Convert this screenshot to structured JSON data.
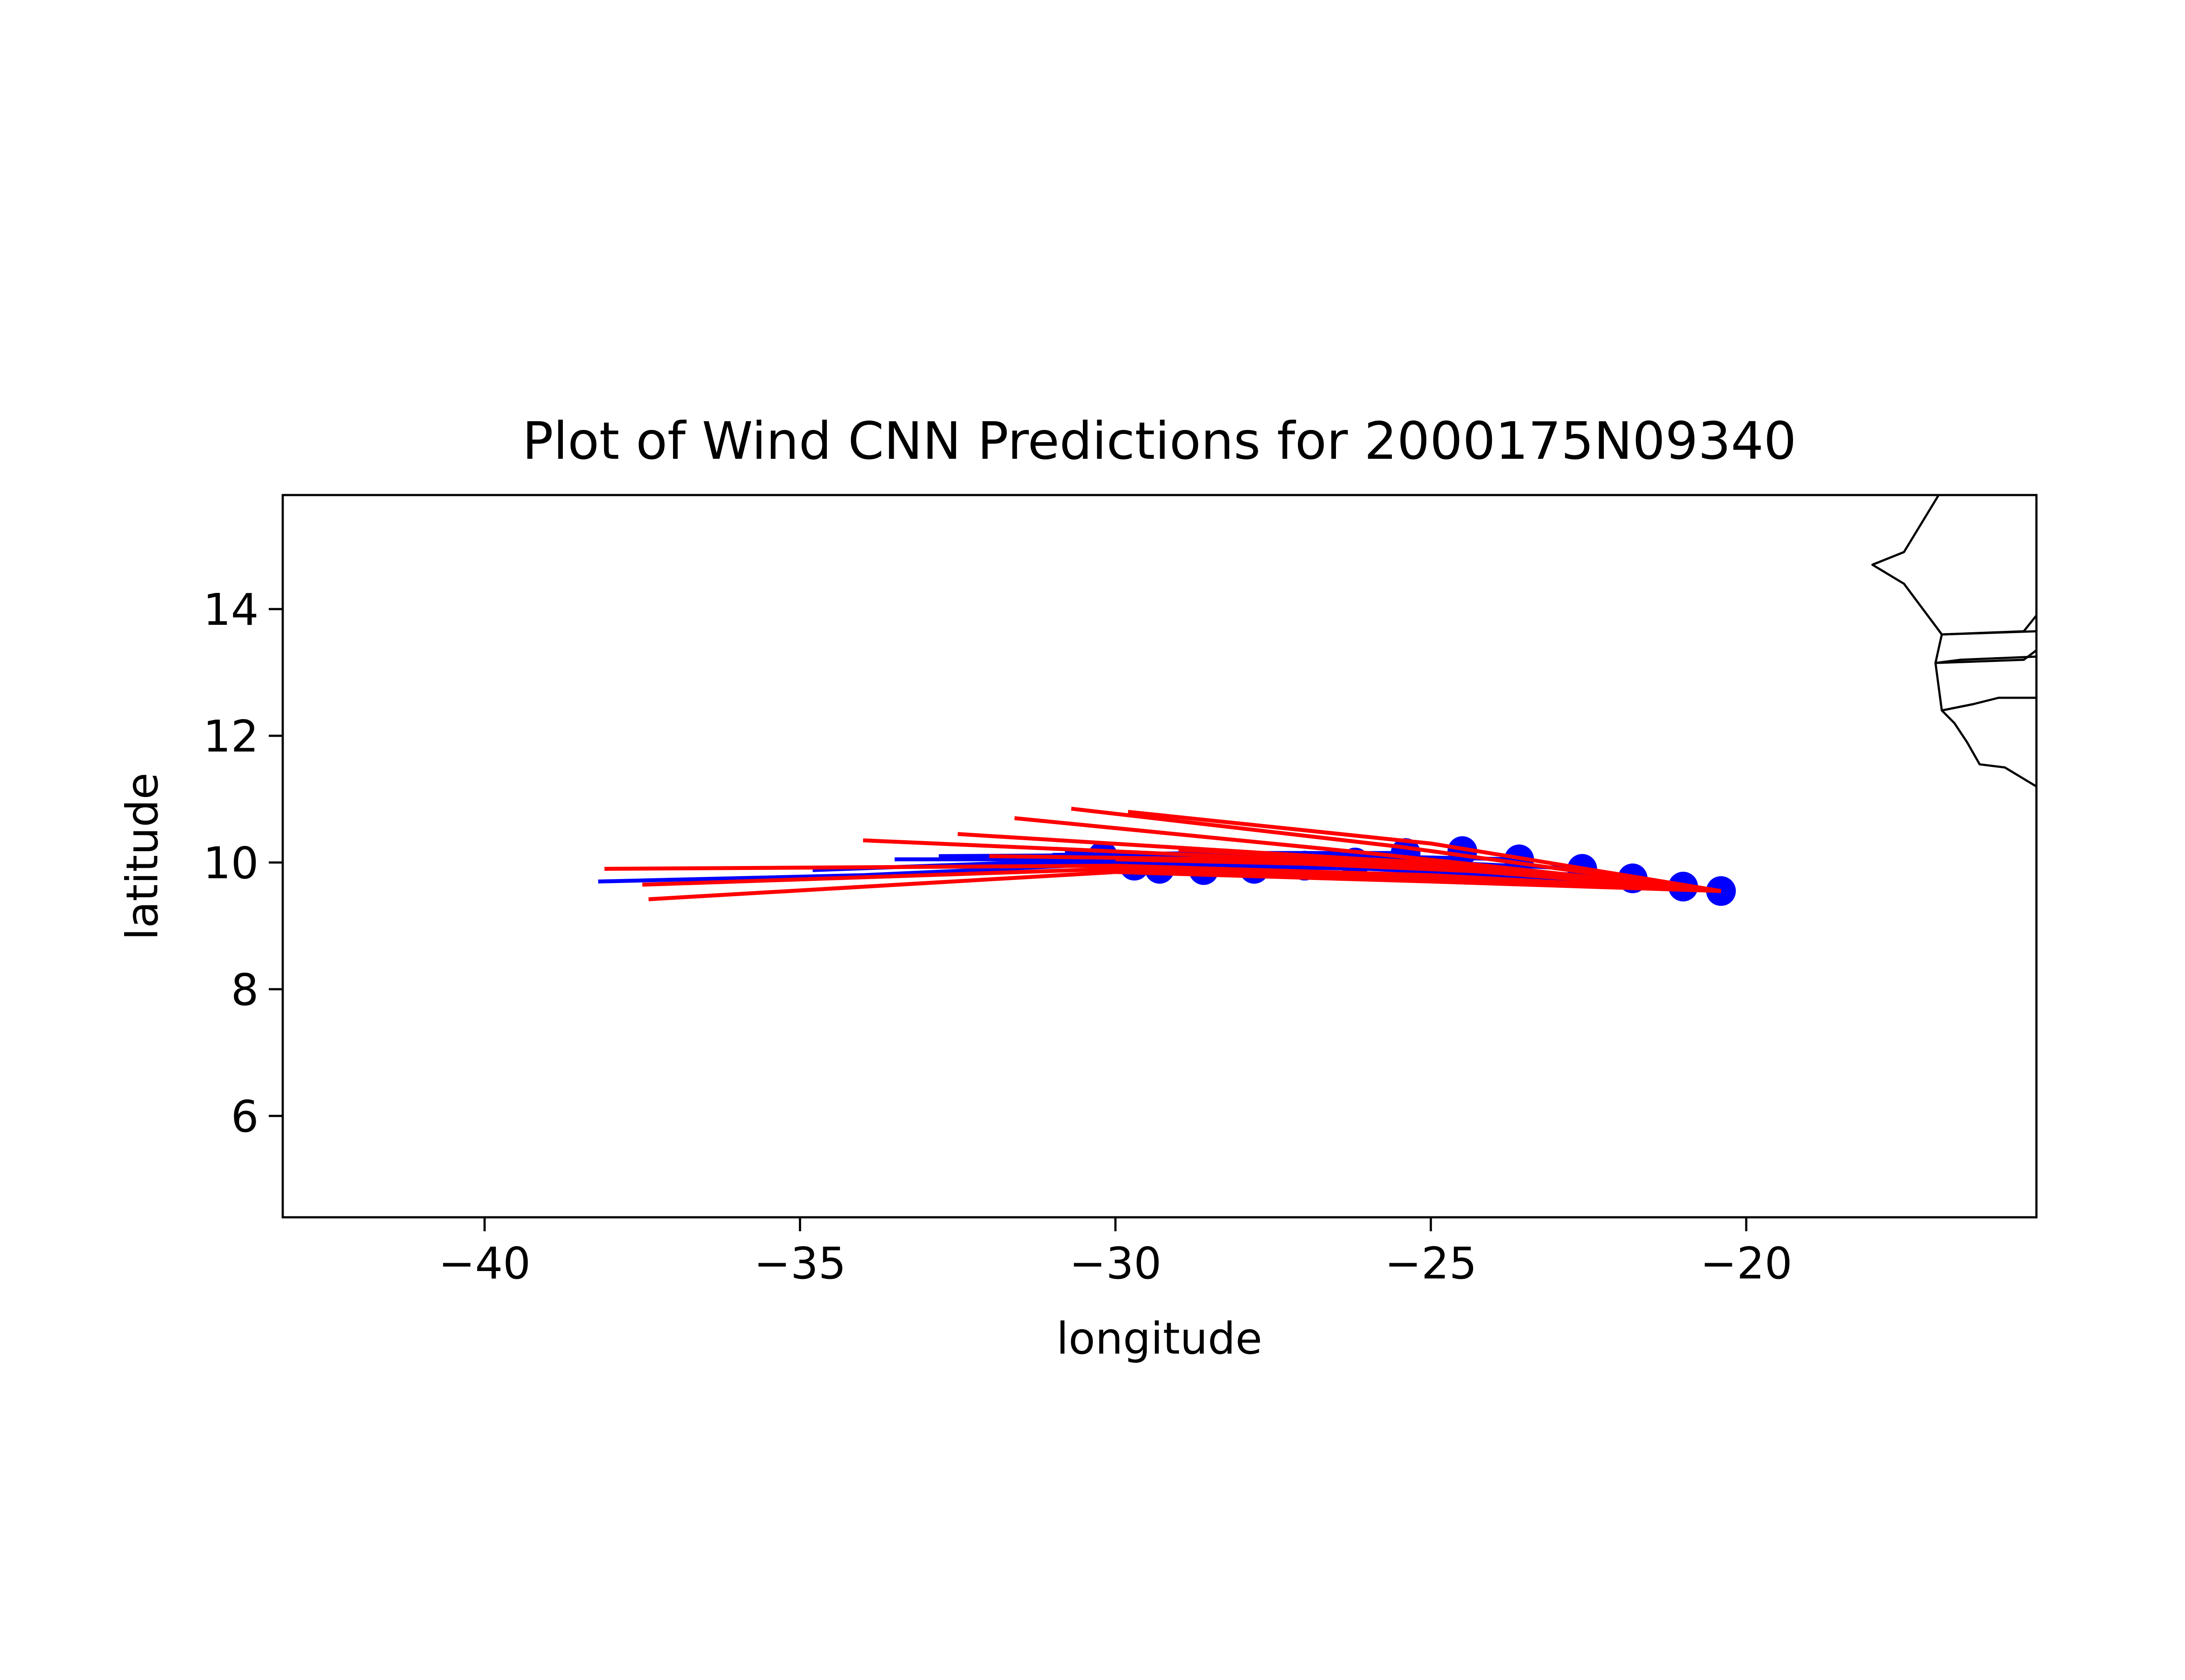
{
  "chart_data": {
    "type": "line",
    "title": "Plot of Wind CNN Predictions for 2000175N09340",
    "xlabel": "longitude",
    "ylabel": "latitude",
    "xlim": [
      -43.2,
      -15.4
    ],
    "ylim": [
      4.4,
      15.8
    ],
    "xticks": [
      {
        "value": -40,
        "label": "−40"
      },
      {
        "value": -35,
        "label": "−35"
      },
      {
        "value": -30,
        "label": "−30"
      },
      {
        "value": -25,
        "label": "−25"
      },
      {
        "value": -20,
        "label": "−20"
      }
    ],
    "yticks": [
      {
        "value": 6,
        "label": "6"
      },
      {
        "value": 8,
        "label": "8"
      },
      {
        "value": 10,
        "label": "10"
      },
      {
        "value": 12,
        "label": "12"
      },
      {
        "value": 14,
        "label": "14"
      }
    ],
    "grid": false,
    "colors": {
      "observed": "#0000ff",
      "predicted": "#ff0000",
      "coastline": "#000000"
    },
    "observed_points": {
      "x": [
        -20.4,
        -21.0,
        -21.8,
        -22.6,
        -23.6,
        -24.5,
        -25.4,
        -26.2,
        -27.0,
        -27.8,
        -28.6,
        -29.3,
        -29.7,
        -30.2
      ],
      "y": [
        9.55,
        9.62,
        9.75,
        9.9,
        10.05,
        10.18,
        10.15,
        10.0,
        9.95,
        9.9,
        9.88,
        9.9,
        9.95,
        10.1
      ]
    },
    "observed_tracks": [
      {
        "x": [
          -20.4,
          -23.0,
          -26.0,
          -30.0,
          -34.0,
          -38.2
        ],
        "y": [
          9.55,
          9.75,
          9.9,
          9.98,
          9.8,
          9.7
        ]
      },
      {
        "x": [
          -21.0,
          -24.0,
          -28.0,
          -31.5,
          -34.8
        ],
        "y": [
          9.62,
          9.85,
          10.0,
          10.0,
          9.88
        ]
      },
      {
        "x": [
          -21.8,
          -25.0,
          -29.0,
          -33.5
        ],
        "y": [
          9.75,
          9.95,
          10.05,
          10.05
        ]
      },
      {
        "x": [
          -22.6,
          -26.0,
          -29.5,
          -32.8
        ],
        "y": [
          9.9,
          10.05,
          10.12,
          10.1
        ]
      },
      {
        "x": [
          -23.6,
          -27.0,
          -30.8
        ],
        "y": [
          10.05,
          10.12,
          10.15
        ]
      },
      {
        "x": [
          -25.4,
          -28.5,
          -31.0
        ],
        "y": [
          10.15,
          10.15,
          10.12
        ]
      }
    ],
    "predicted_tracks": [
      {
        "x": [
          -20.4,
          -25.0,
          -30.0,
          -38.1
        ],
        "y": [
          9.55,
          9.8,
          9.95,
          9.9
        ]
      },
      {
        "x": [
          -20.4,
          -25.0,
          -30.0,
          -37.5
        ],
        "y": [
          9.55,
          9.75,
          9.9,
          9.65
        ]
      },
      {
        "x": [
          -20.4,
          -25.0,
          -30.0,
          -37.4
        ],
        "y": [
          9.55,
          9.7,
          9.85,
          9.42
        ]
      },
      {
        "x": [
          -20.4,
          -26.0,
          -34.0
        ],
        "y": [
          9.55,
          10.0,
          10.35
        ]
      },
      {
        "x": [
          -20.4,
          -26.0,
          -32.5
        ],
        "y": [
          9.55,
          10.05,
          10.45
        ]
      },
      {
        "x": [
          -20.4,
          -26.0,
          -31.6
        ],
        "y": [
          9.55,
          10.15,
          10.7
        ]
      },
      {
        "x": [
          -20.4,
          -25.5,
          -30.7
        ],
        "y": [
          9.55,
          10.25,
          10.85
        ]
      },
      {
        "x": [
          -20.4,
          -25.0,
          -29.8
        ],
        "y": [
          9.55,
          10.3,
          10.8
        ]
      },
      {
        "x": [
          -20.4,
          -24.0,
          -27.0,
          -30.0
        ],
        "y": [
          9.55,
          9.85,
          9.98,
          10.05
        ]
      },
      {
        "x": [
          -20.4,
          -24.0,
          -28.0,
          -32.0
        ],
        "y": [
          9.55,
          9.9,
          10.05,
          10.1
        ]
      },
      {
        "x": [
          -20.4,
          -25.0,
          -29.0
        ],
        "y": [
          9.55,
          10.0,
          10.2
        ]
      }
    ],
    "coastline": [
      {
        "x": [
          -16.95,
          -17.5,
          -18.0,
          -17.5,
          -16.9,
          -15.4
        ],
        "y": [
          15.8,
          14.9,
          14.7,
          14.4,
          13.6,
          13.65
        ]
      },
      {
        "x": [
          -15.4,
          -15.6,
          -16.9
        ],
        "y": [
          13.9,
          13.65,
          13.6
        ]
      },
      {
        "x": [
          -16.9,
          -17.0,
          -16.6,
          -15.4
        ],
        "y": [
          13.6,
          13.15,
          13.2,
          13.25
        ]
      },
      {
        "x": [
          -15.4,
          -15.6,
          -17.0
        ],
        "y": [
          13.35,
          13.2,
          13.15
        ]
      },
      {
        "x": [
          -17.0,
          -16.9,
          -16.4,
          -16.0,
          -15.4
        ],
        "y": [
          13.15,
          12.4,
          12.5,
          12.6,
          12.6
        ]
      },
      {
        "x": [
          -16.9,
          -16.7,
          -16.5,
          -16.3,
          -15.9,
          -15.4
        ],
        "y": [
          12.4,
          12.2,
          11.9,
          11.55,
          11.5,
          11.2
        ]
      }
    ]
  }
}
